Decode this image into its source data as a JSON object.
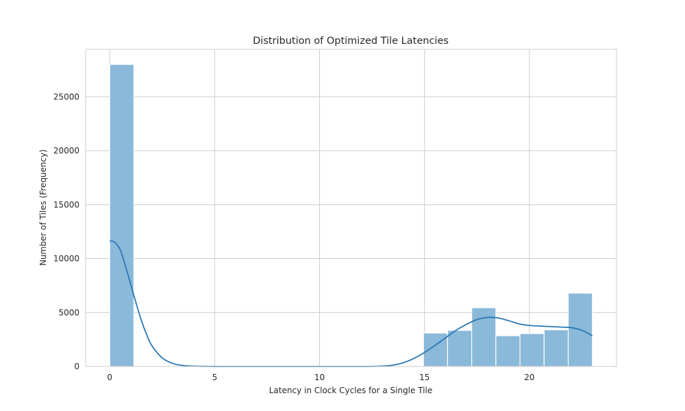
{
  "chart_data": {
    "type": "bar",
    "title": "Distribution of Optimized Tile Latencies",
    "xlabel": "Latency in Clock Cycles for a Single Tile",
    "ylabel": "Number of Tiles (Frequency)",
    "xlim": [
      -1.15,
      24.15
    ],
    "ylim": [
      0,
      29400
    ],
    "xticks": [
      0,
      5,
      10,
      15,
      20
    ],
    "yticks": [
      0,
      5000,
      10000,
      15000,
      20000,
      25000
    ],
    "grid": true,
    "bin_edges": [
      0,
      1.15,
      2.3,
      3.45,
      4.6,
      5.75,
      6.9,
      8.05,
      9.2,
      10.35,
      11.5,
      12.65,
      13.8,
      14.95,
      16.1,
      17.25,
      18.4,
      19.55,
      20.7,
      21.85,
      23.0
    ],
    "values": [
      28000,
      0,
      0,
      0,
      0,
      0,
      0,
      0,
      0,
      0,
      0,
      0,
      0,
      3100,
      3350,
      5450,
      2850,
      3050,
      3400,
      6800
    ],
    "kde": {
      "x": [
        0,
        0.25,
        0.5,
        0.75,
        1.0,
        1.25,
        1.5,
        1.75,
        2.0,
        2.5,
        3.0,
        3.5,
        4.0,
        5,
        6,
        8,
        10,
        12,
        13,
        13.5,
        14,
        14.5,
        15,
        15.5,
        16,
        16.5,
        17,
        17.5,
        18,
        18.5,
        19,
        19.5,
        20,
        20.5,
        21,
        21.5,
        22,
        22.5,
        23
      ],
      "y": [
        11650,
        11500,
        10800,
        9300,
        7600,
        5900,
        4300,
        3000,
        1950,
        800,
        280,
        90,
        30,
        5,
        0,
        0,
        0,
        0,
        40,
        130,
        350,
        750,
        1300,
        1950,
        2650,
        3350,
        3900,
        4350,
        4550,
        4500,
        4250,
        3950,
        3800,
        3750,
        3700,
        3650,
        3600,
        3350,
        2850
      ]
    },
    "colors": {
      "bar_fill": "#8bb9d9",
      "bar_edge": "#ffffff",
      "kde_line": "#2878b5",
      "grid": "#cccccc",
      "axes_edge": "#cccccc",
      "text": "#262626"
    }
  }
}
